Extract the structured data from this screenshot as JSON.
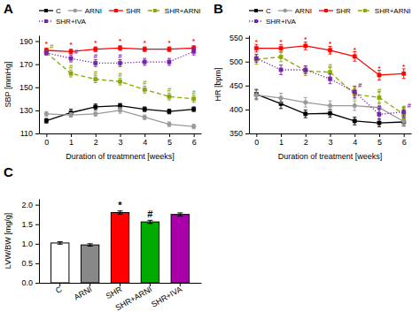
{
  "chart_data": [
    {
      "type": "line",
      "title": "A",
      "xlabel": "Duration of treatmnent [weeks]",
      "ylabel": "SBP [mmHg]",
      "x": [
        0,
        1,
        2,
        3,
        4,
        5,
        6
      ],
      "xlim": [
        -0.3,
        6.3
      ],
      "xticks": [
        0,
        1,
        2,
        3,
        4,
        5,
        6
      ],
      "ylim": [
        110,
        195
      ],
      "yticks": [
        110,
        130,
        150,
        170,
        190
      ],
      "legend": "top",
      "series": [
        {
          "name": "C",
          "color": "black",
          "line_style": "solid",
          "marker": "square",
          "values": [
            121,
            128,
            133,
            134,
            131,
            129,
            131
          ],
          "errors": [
            2,
            3,
            2.5,
            2,
            2,
            2,
            2
          ]
        },
        {
          "name": "ARNI",
          "color": "#999999",
          "line_style": "solid",
          "marker": "circle",
          "values": [
            127,
            126,
            127,
            130,
            124,
            118,
            116
          ],
          "errors": [
            2,
            2,
            2,
            2.5,
            2,
            2,
            2
          ]
        },
        {
          "name": "SHR",
          "color": "red",
          "line_style": "solid",
          "marker": "square",
          "values": [
            182,
            181,
            183,
            184,
            183,
            183,
            184
          ],
          "errors": [
            2,
            2,
            2,
            2,
            2,
            2,
            2
          ]
        },
        {
          "name": "SHR+ARNI",
          "color": "#88aa00",
          "line_style": "dashed",
          "marker": "square",
          "values": [
            180,
            162,
            157,
            155,
            148,
            142,
            140
          ],
          "errors": [
            2,
            3,
            3,
            3,
            3,
            3,
            3
          ]
        },
        {
          "name": "SHR+IVA",
          "color": "#7722aa",
          "line_style": "dotted",
          "marker": "square",
          "values": [
            180,
            175,
            171,
            171,
            172,
            172,
            181
          ],
          "errors": [
            2,
            3,
            3,
            3,
            3,
            3,
            3
          ]
        }
      ],
      "annotations": [
        {
          "text": "*",
          "x": 0,
          "y": 182,
          "color": "red"
        },
        {
          "text": "*",
          "x": 1,
          "y": 181,
          "color": "red"
        },
        {
          "text": "*",
          "x": 2,
          "y": 183,
          "color": "red"
        },
        {
          "text": "*",
          "x": 3,
          "y": 184,
          "color": "red"
        },
        {
          "text": "*",
          "x": 4,
          "y": 183,
          "color": "red"
        },
        {
          "text": "*",
          "x": 5,
          "y": 183,
          "color": "red"
        },
        {
          "text": "*",
          "x": 6,
          "y": 184,
          "color": "red"
        },
        {
          "text": "#",
          "x": 0,
          "y": 180,
          "color": "#88aa00"
        },
        {
          "text": "#",
          "x": 1,
          "y": 162,
          "color": "#88aa00"
        },
        {
          "text": "#",
          "x": 2,
          "y": 157,
          "color": "#88aa00"
        },
        {
          "text": "#",
          "x": 3,
          "y": 155,
          "color": "#88aa00"
        },
        {
          "text": "#",
          "x": 4,
          "y": 148,
          "color": "#88aa00"
        },
        {
          "text": "#",
          "x": 5,
          "y": 142,
          "color": "#88aa00"
        },
        {
          "text": "#",
          "x": 6,
          "y": 140,
          "color": "#88aa00"
        },
        {
          "text": "#",
          "x": 1,
          "y": 175,
          "color": "#7722aa"
        },
        {
          "text": "#",
          "x": 2,
          "y": 171,
          "color": "#7722aa"
        },
        {
          "text": "#",
          "x": 3,
          "y": 171,
          "color": "#7722aa"
        }
      ]
    },
    {
      "type": "line",
      "title": "B",
      "xlabel": "Duration of treatment [weeks]",
      "ylabel": "HR [bpm]",
      "x": [
        0,
        1,
        2,
        3,
        4,
        5,
        6
      ],
      "xlim": [
        -0.3,
        6.3
      ],
      "xticks": [
        0,
        1,
        2,
        3,
        4,
        5,
        6
      ],
      "ylim": [
        350,
        555
      ],
      "yticks": [
        350,
        400,
        450,
        500,
        550
      ],
      "legend": "top",
      "series": [
        {
          "name": "C",
          "color": "black",
          "line_style": "solid",
          "marker": "square",
          "values": [
            432,
            412,
            391,
            392,
            376,
            372,
            374
          ],
          "errors": [
            10,
            10,
            8,
            8,
            8,
            8,
            8
          ]
        },
        {
          "name": "ARNI",
          "color": "#999999",
          "line_style": "solid",
          "marker": "circle",
          "values": [
            430,
            424,
            415,
            408,
            408,
            404,
            375
          ],
          "errors": [
            10,
            10,
            10,
            10,
            10,
            10,
            10
          ]
        },
        {
          "name": "SHR",
          "color": "red",
          "line_style": "solid",
          "marker": "square",
          "values": [
            528,
            528,
            533,
            524,
            511,
            472,
            475
          ],
          "errors": [
            8,
            8,
            8,
            8,
            10,
            10,
            10
          ]
        },
        {
          "name": "SHR+ARNI",
          "color": "#88aa00",
          "line_style": "dashed",
          "marker": "square",
          "values": [
            505,
            510,
            481,
            478,
            432,
            425,
            390
          ],
          "errors": [
            10,
            10,
            10,
            10,
            10,
            12,
            10
          ]
        },
        {
          "name": "SHR+IVA",
          "color": "#7722aa",
          "line_style": "dotted",
          "marker": "square",
          "values": [
            507,
            483,
            483,
            464,
            437,
            390,
            395
          ],
          "errors": [
            8,
            10,
            8,
            10,
            12,
            10,
            10
          ]
        }
      ],
      "annotations": [
        {
          "text": "*",
          "x": 0,
          "y": 528,
          "color": "red"
        },
        {
          "text": "*",
          "x": 1,
          "y": 528,
          "color": "red"
        },
        {
          "text": "*",
          "x": 2,
          "y": 533,
          "color": "red"
        },
        {
          "text": "*",
          "x": 3,
          "y": 524,
          "color": "red"
        },
        {
          "text": "*",
          "x": 4,
          "y": 511,
          "color": "red"
        },
        {
          "text": "*",
          "x": 5,
          "y": 472,
          "color": "red"
        },
        {
          "text": "*",
          "x": 6,
          "y": 475,
          "color": "red"
        },
        {
          "text": "#",
          "x": 3,
          "y": 478,
          "color": "#88aa00"
        },
        {
          "text": "#",
          "x": 4,
          "y": 432,
          "color": "#88aa00"
        },
        {
          "text": "#",
          "x": 5,
          "y": 425,
          "color": "#88aa00"
        },
        {
          "text": "#",
          "x": 6,
          "y": 390,
          "color": "#88aa00"
        },
        {
          "text": "#",
          "x": 4,
          "y": 437,
          "color": "#7722aa"
        },
        {
          "text": "#",
          "x": 5,
          "y": 390,
          "color": "#7722aa"
        },
        {
          "text": "#",
          "x": 6,
          "y": 395,
          "color": "#7722aa"
        }
      ]
    },
    {
      "type": "bar",
      "title": "C",
      "ylabel": "LVW/BW [mg/g]",
      "categories": [
        "C",
        "ARNI",
        "SHR",
        "SHR+ARNI",
        "SHR+IVA"
      ],
      "values": [
        1.02,
        0.97,
        1.8,
        1.56,
        1.75
      ],
      "errors": [
        0.03,
        0.03,
        0.04,
        0.04,
        0.04
      ],
      "colors": [
        "white",
        "#888888",
        "red",
        "#00aa00",
        "#aa00aa"
      ],
      "ylim": [
        0,
        2.15
      ],
      "yticks": [
        {
          "value": 0,
          "label": "0.0"
        },
        0.5,
        {
          "value": 1,
          "label": "1.0"
        },
        1.5,
        {
          "value": 2,
          "label": "2.0"
        }
      ],
      "annotations": [
        {
          "text": "*",
          "x": "SHR"
        },
        {
          "text": "#",
          "x": "SHR+ARNI"
        }
      ]
    }
  ]
}
